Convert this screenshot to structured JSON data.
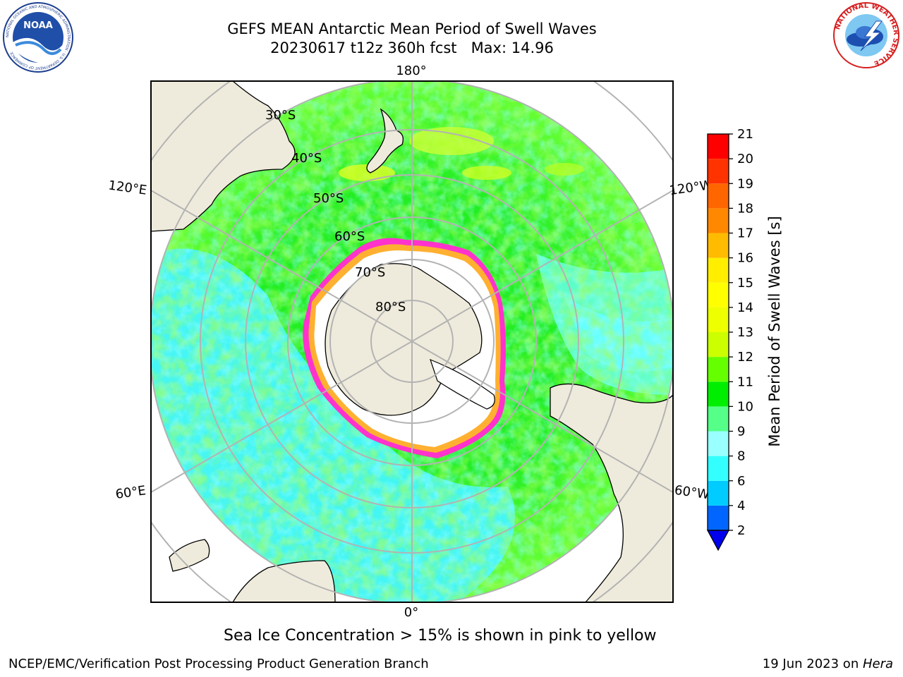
{
  "header": {
    "title": "GEFS MEAN Antarctic Mean Period of Swell Waves",
    "subtitle": "20230617 t12z 360h fcst   Max: 14.96",
    "left_logo": "NOAA",
    "left_logo_ring_text": "NATIONAL OCEANIC AND ATMOSPHERIC ADMINISTRATION · U.S. DEPARTMENT OF COMMERCE",
    "right_logo_ring_text": "NATIONAL WEATHER SERVICE"
  },
  "chart_data": {
    "type": "heatmap",
    "projection": "south-polar-stereographic",
    "variable": "Mean Period of Swell Waves",
    "max_value": 14.96,
    "longitude_labels": [
      "180°",
      "120°E",
      "120°W",
      "60°E",
      "60°W",
      "0°"
    ],
    "latitude_labels": [
      "30°S",
      "40°S",
      "50°S",
      "60°S",
      "70°S",
      "80°S"
    ],
    "colorbar": {
      "label": "Mean Period of Swell Waves [s]",
      "ticks": [
        2,
        4,
        6,
        8,
        9,
        10,
        11,
        12,
        13,
        14,
        15,
        16,
        17,
        18,
        19,
        20,
        21
      ],
      "bins": [
        {
          "from": 2,
          "to": 4,
          "color": "#0066ff"
        },
        {
          "from": 4,
          "to": 6,
          "color": "#00ccff"
        },
        {
          "from": 6,
          "to": 8,
          "color": "#33ffff"
        },
        {
          "from": 8,
          "to": 9,
          "color": "#99ffff"
        },
        {
          "from": 9,
          "to": 10,
          "color": "#55ff88"
        },
        {
          "from": 10,
          "to": 11,
          "color": "#00ee00"
        },
        {
          "from": 11,
          "to": 12,
          "color": "#66ff00"
        },
        {
          "from": 12,
          "to": 13,
          "color": "#ccff00"
        },
        {
          "from": 13,
          "to": 14,
          "color": "#eeff00"
        },
        {
          "from": 14,
          "to": 15,
          "color": "#ffff00"
        },
        {
          "from": 15,
          "to": 16,
          "color": "#ffee00"
        },
        {
          "from": 16,
          "to": 17,
          "color": "#ffbb00"
        },
        {
          "from": 17,
          "to": 18,
          "color": "#ff8800"
        },
        {
          "from": 18,
          "to": 19,
          "color": "#ff6600"
        },
        {
          "from": 19,
          "to": 20,
          "color": "#ff3300"
        },
        {
          "from": 20,
          "to": 21,
          "color": "#ff0000"
        }
      ],
      "extend_min_color": "#0000ee"
    },
    "colors": {
      "land": "#efebdc",
      "ice_inner": "#ffffff",
      "ice_edge": "#ff33cc",
      "ice_fringe": "#ffb030",
      "grid": "#b3b3b3"
    }
  },
  "footnote": "Sea Ice Concentration > 15% is shown in pink to yellow",
  "footer": {
    "left": "NCEP/EMC/Verification Post Processing Product Generation Branch",
    "right_date": "19 Jun 2023 on ",
    "right_host": "Hera"
  }
}
